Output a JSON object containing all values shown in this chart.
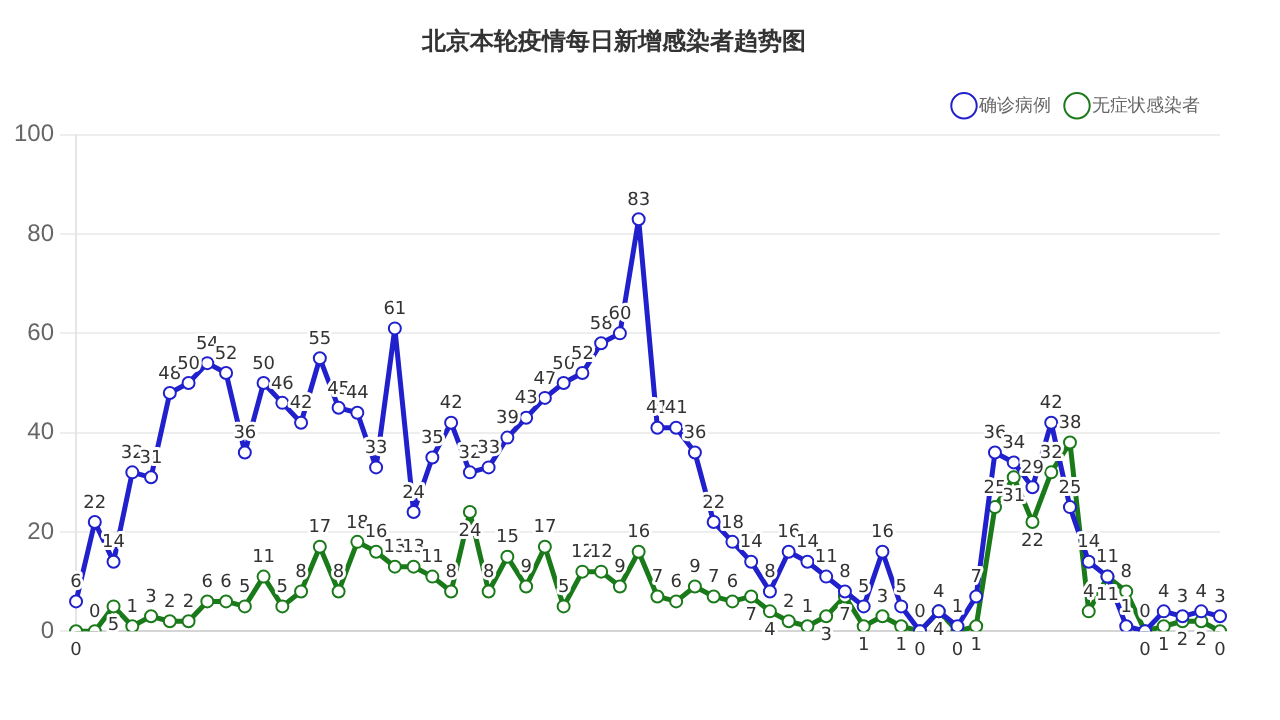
{
  "chart_data": {
    "type": "line",
    "title": "北京本轮疫情每日新增感染者趋势图",
    "categories": [
      null,
      null,
      null,
      null,
      null,
      null,
      null,
      null,
      null,
      null,
      null,
      null,
      null,
      null,
      null,
      null,
      null,
      null,
      null,
      null,
      null,
      null,
      null,
      null,
      null,
      null,
      null,
      null,
      null,
      null,
      null,
      null,
      null,
      null,
      null,
      null,
      null,
      null,
      null,
      null,
      null,
      null,
      null,
      null,
      null,
      null,
      null,
      null,
      null,
      null,
      null,
      null,
      null,
      null,
      null,
      null,
      null,
      null,
      null,
      null,
      null,
      null
    ],
    "series": [
      {
        "name": "确诊病例",
        "color": "#2020cc",
        "values": [
          6,
          22,
          14,
          32,
          31,
          48,
          50,
          54,
          52,
          36,
          50,
          46,
          42,
          55,
          45,
          44,
          33,
          61,
          24,
          35,
          42,
          32,
          33,
          39,
          43,
          47,
          50,
          52,
          58,
          60,
          83,
          41,
          41,
          36,
          22,
          18,
          14,
          8,
          16,
          14,
          11,
          8,
          5,
          16,
          5,
          0,
          4,
          1,
          7,
          36,
          34,
          29,
          42,
          25,
          14,
          11,
          1,
          0,
          4,
          3,
          4,
          3
        ]
      },
      {
        "name": "无症状感染者",
        "color": "#1a7a1a",
        "values": [
          0,
          0,
          5,
          1,
          3,
          2,
          2,
          6,
          6,
          5,
          11,
          5,
          8,
          17,
          8,
          18,
          16,
          13,
          13,
          11,
          8,
          24,
          8,
          15,
          9,
          17,
          5,
          12,
          12,
          9,
          16,
          7,
          6,
          9,
          7,
          6,
          7,
          4,
          2,
          1,
          3,
          7,
          1,
          3,
          1,
          0,
          4,
          0,
          1,
          25,
          31,
          22,
          32,
          38,
          4,
          11,
          8,
          0,
          1,
          2,
          2,
          0
        ]
      }
    ],
    "ylim": [
      0,
      100
    ],
    "yticks": [
      0,
      20,
      40,
      60,
      80,
      100
    ],
    "grid": "y",
    "legend": "top right",
    "marker": "circle",
    "line_style": "solid",
    "data_labels": true
  }
}
